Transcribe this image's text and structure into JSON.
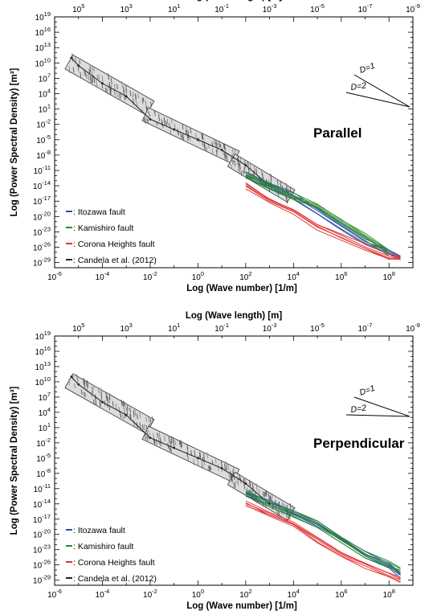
{
  "chart_data": [
    {
      "type": "line",
      "panel_label": "Parallel",
      "top_xlabel": "Log (Wave length) [m]",
      "xlabel": "Log (Wave number) [1/m]",
      "ylabel": "Log (Power Spectral Density) [m³]",
      "xscale": "log",
      "yscale": "log",
      "xlim": [
        1e-06,
        1000000000.0
      ],
      "ylim": [
        1e-30,
        1e+19
      ],
      "x_ticks": [
        "10^-6",
        "10^-4",
        "10^-2",
        "10^0",
        "10^2",
        "10^4",
        "10^6",
        "10^8"
      ],
      "top_ticks": [
        "10^5",
        "10^3",
        "10^1",
        "10^-1",
        "10^-3",
        "10^-5",
        "10^-7",
        "10^-9"
      ],
      "y_ticks": [
        "10^19",
        "10^16",
        "10^13",
        "10^10",
        "10^7",
        "10^4",
        "10^1",
        "10^-2",
        "10^-5",
        "10^-8",
        "10^-11",
        "10^-14",
        "10^-17",
        "10^-20",
        "10^-23",
        "10^-26",
        "10^-29"
      ],
      "slope_labels": [
        "D=1",
        "D=2"
      ],
      "legend": [
        {
          "marker": "-",
          "label": ": Itozawa fault",
          "color": "#2b4fa8"
        },
        {
          "marker": "-",
          "label": ": Kamishiro fault",
          "color": "#2a8a2a"
        },
        {
          "marker": "-",
          "label": ": Corona Heights fault",
          "color": "#e03030"
        },
        {
          "marker": "-",
          "label": ": Candela et al. (2012)",
          "color": "#222222"
        }
      ],
      "series": [
        {
          "key": "candela",
          "x": [
            5e-06,
            1e-05,
            0.0001,
            0.001,
            0.01,
            0.1,
            1,
            10,
            100,
            1000
          ],
          "y": [
            100000000000.0,
            3000000000.0,
            1000000.0,
            3000.0,
            0.1,
            0.001,
            1e-05,
            1e-07,
            1e-10,
            1e-14
          ]
        },
        {
          "key": "itozawa",
          "x": [
            100,
            1000,
            10000,
            100000,
            1000000.0,
            10000000.0,
            100000000.0,
            300000000.0
          ],
          "y": [
            1e-12,
            1e-14,
            1e-16,
            1e-19,
            1e-22,
            1e-25,
            1e-27,
            1e-28
          ]
        },
        {
          "key": "kamishiro",
          "x": [
            100,
            1000,
            10000,
            100000,
            1000000.0,
            10000000.0,
            100000000.0
          ],
          "y": [
            1e-12,
            1e-14,
            1e-16,
            1e-18,
            1e-21,
            1e-24,
            1e-27
          ]
        },
        {
          "key": "corona",
          "x": [
            100,
            1000,
            10000,
            100000,
            1000000.0,
            10000000.0,
            100000000.0,
            300000000.0
          ],
          "y": [
            1e-14,
            1e-17,
            1e-19,
            1e-22,
            1e-24,
            1e-26,
            1e-28,
            1e-28
          ]
        }
      ]
    },
    {
      "type": "line",
      "panel_label": "Perpendicular",
      "top_xlabel": "Log (Wave length) [m]",
      "xlabel": "Log (Wave number) [1/m]",
      "ylabel": "Log (Power Spectral Density) [m³]",
      "xscale": "log",
      "yscale": "log",
      "xlim": [
        1e-06,
        1000000000.0
      ],
      "ylim": [
        1e-30,
        1e+19
      ],
      "x_ticks": [
        "10^-6",
        "10^-4",
        "10^-2",
        "10^0",
        "10^2",
        "10^4",
        "10^6",
        "10^8"
      ],
      "top_ticks": [
        "10^5",
        "10^3",
        "10^1",
        "10^-1",
        "10^-3",
        "10^-5",
        "10^-7",
        "10^-9"
      ],
      "y_ticks": [
        "10^19",
        "10^16",
        "10^13",
        "10^10",
        "10^7",
        "10^4",
        "10^1",
        "10^-2",
        "10^-5",
        "10^-8",
        "10^-11",
        "10^-14",
        "10^-17",
        "10^-20",
        "10^-23",
        "10^-26",
        "10^-29"
      ],
      "slope_labels": [
        "D=1",
        "D=2"
      ],
      "legend": [
        {
          "marker": "-",
          "label": ": Itozawa fault",
          "color": "#2b4fa8"
        },
        {
          "marker": "-",
          "label": ": Kamishiro fault",
          "color": "#2a8a2a"
        },
        {
          "marker": "-",
          "label": ": Corona Heights fault",
          "color": "#e03030"
        },
        {
          "marker": "-",
          "label": ": Candela et al. (2012)",
          "color": "#222222"
        }
      ],
      "series": [
        {
          "key": "candela",
          "x": [
            5e-06,
            1e-05,
            0.0001,
            0.001,
            0.01,
            0.1,
            1,
            10,
            100,
            1000
          ],
          "y": [
            100000000000.0,
            3000000000.0,
            1000000.0,
            3000.0,
            0.1,
            0.001,
            1e-05,
            1e-07,
            1e-10,
            1e-14
          ]
        },
        {
          "key": "itozawa",
          "x": [
            100,
            1000,
            10000,
            100000,
            1000000.0,
            10000000.0,
            100000000.0,
            300000000.0
          ],
          "y": [
            1e-12,
            1e-14,
            1e-16,
            1e-18,
            1e-21,
            1e-24,
            1e-26,
            1e-28
          ]
        },
        {
          "key": "kamishiro",
          "x": [
            100,
            1000,
            10000,
            100000,
            1000000.0,
            10000000.0,
            100000000.0,
            300000000.0
          ],
          "y": [
            1e-12,
            1e-14,
            1e-16,
            1e-18,
            1e-21,
            1e-24,
            1e-26,
            1e-27
          ]
        },
        {
          "key": "corona",
          "x": [
            100,
            1000,
            10000,
            100000,
            1000000.0,
            10000000.0,
            100000000.0,
            300000000.0
          ],
          "y": [
            1e-14,
            1e-16,
            1e-18,
            1e-21,
            1e-24,
            1e-26,
            1e-28,
            1e-29
          ]
        }
      ]
    }
  ]
}
